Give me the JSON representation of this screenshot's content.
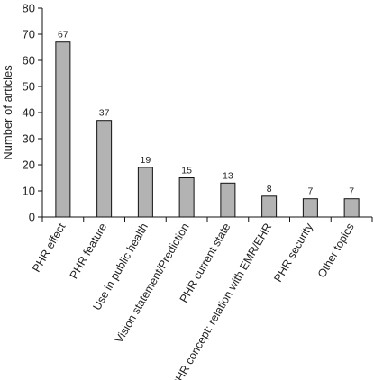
{
  "chart_data": {
    "type": "bar",
    "categories": [
      "PHR effect",
      "PHR feature",
      "Use in public health",
      "Vision statement/Prediction",
      "PHR current state",
      "PHR concept: relation with EMR/EHR",
      "PHR security",
      "Other topics"
    ],
    "values": [
      67,
      37,
      19,
      15,
      13,
      8,
      7,
      7
    ],
    "data_labels": [
      "67",
      "37",
      "19",
      "15",
      "13",
      "8",
      "7",
      "7"
    ],
    "title": "",
    "xlabel": "",
    "ylabel": "Number of articles",
    "ylim": [
      0,
      80
    ],
    "yticks": [
      0,
      10,
      20,
      30,
      40,
      50,
      60,
      70,
      80
    ],
    "bar_color": "#b3b3b3",
    "bar_edge_color": "#111111",
    "grid": false,
    "legend": "none"
  }
}
